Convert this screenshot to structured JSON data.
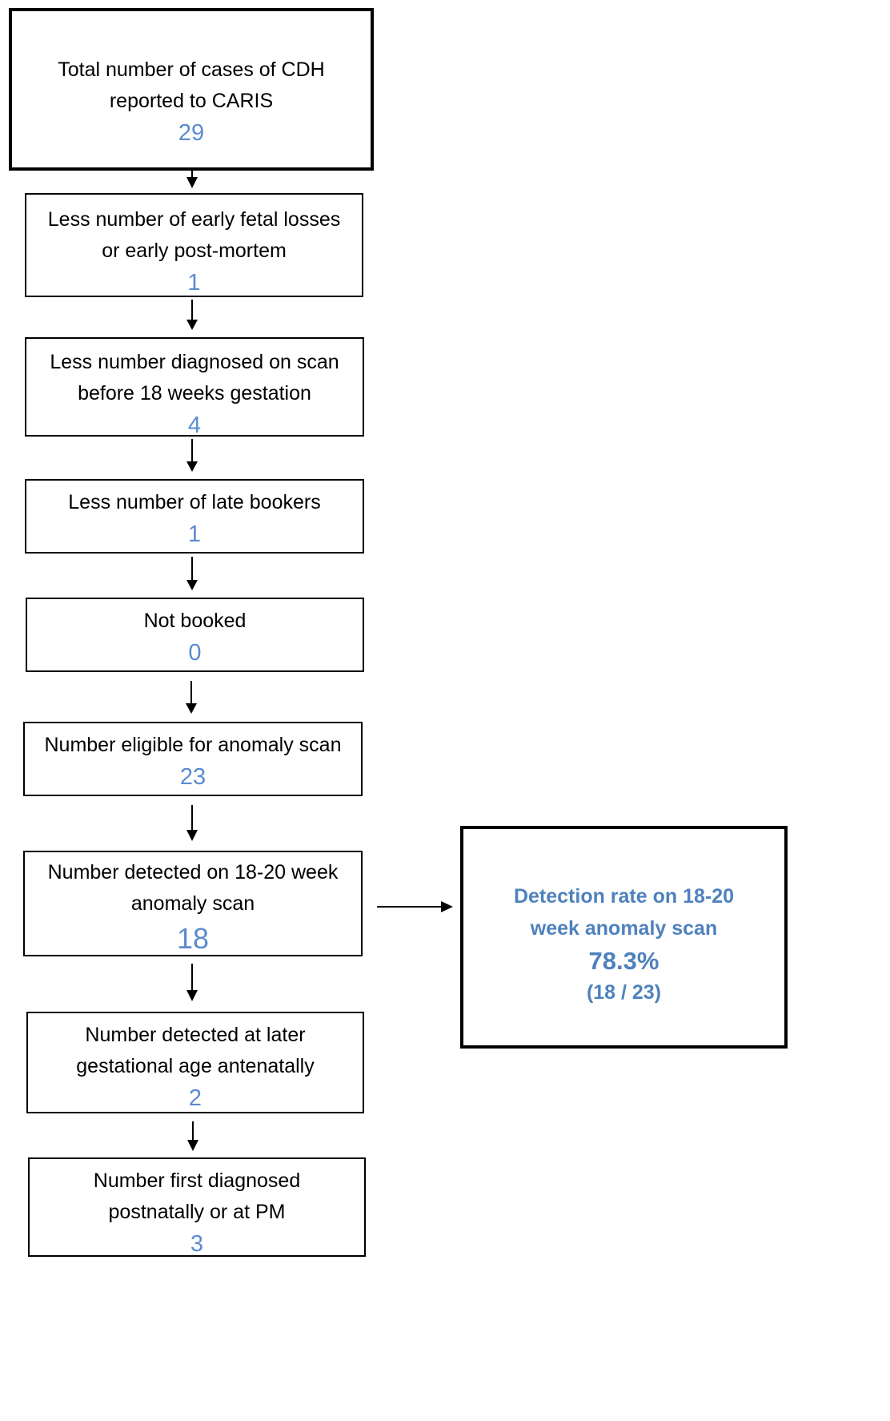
{
  "steps": [
    {
      "id": "total",
      "label": "Total number of cases of CDH\nreported to CARIS",
      "value": "29"
    },
    {
      "id": "early",
      "label": "Less number of early fetal losses\nor early post-mortem",
      "value": "1"
    },
    {
      "id": "before18",
      "label": "Less number diagnosed on scan\nbefore 18 weeks gestation",
      "value": "4"
    },
    {
      "id": "late",
      "label": "Less number of late bookers",
      "value": "1"
    },
    {
      "id": "notbooked",
      "label": "Not booked",
      "value": "0"
    },
    {
      "id": "eligible",
      "label": "Number eligible for anomaly scan",
      "value": "23"
    },
    {
      "id": "detected",
      "label": "Number detected on 18-20 week\nanomaly scan",
      "value": "18"
    },
    {
      "id": "later",
      "label": "Number detected at later\ngestational age antenatally",
      "value": "2"
    },
    {
      "id": "postnatal",
      "label": "Number first diagnosed\npostnatally or at PM",
      "value": "3"
    }
  ],
  "result": {
    "label": "Detection rate on 18-20\nweek anomaly scan",
    "percent": "78.3%",
    "fraction": "(18 / 23)"
  },
  "colors": {
    "value": "#5B8BD0",
    "result": "#4F81BD",
    "border": "#000000"
  }
}
